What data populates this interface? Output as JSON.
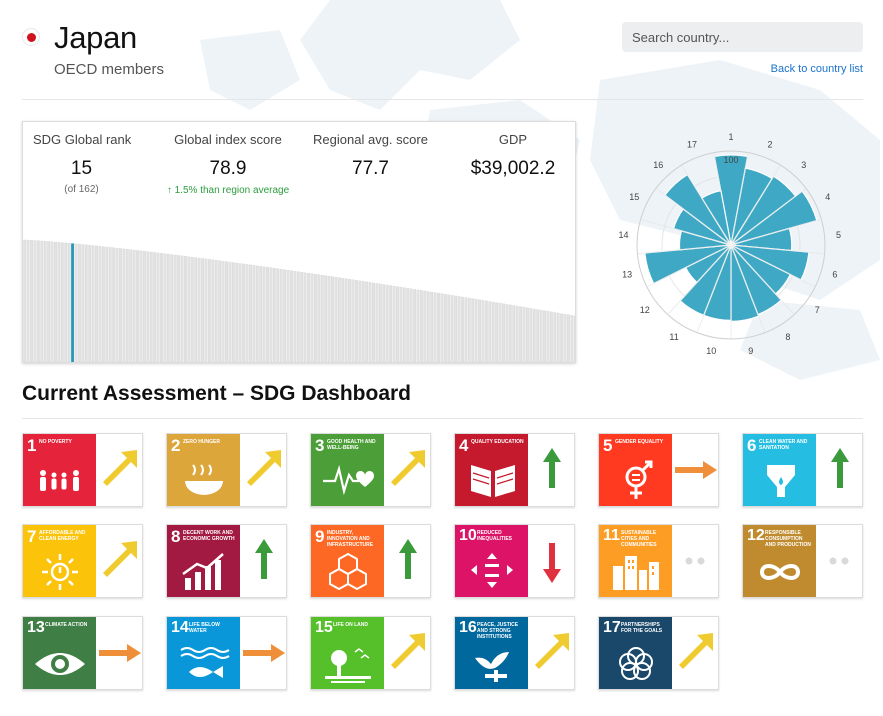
{
  "header": {
    "country": "Japan",
    "group": "OECD members",
    "search_placeholder": "Search country...",
    "back_link": "Back to country list"
  },
  "stats": {
    "rank": {
      "label": "SDG Global rank",
      "value": "15",
      "sub": "(of 162)"
    },
    "index": {
      "label": "Global index score",
      "value": "78.9",
      "delta": "↑ 1.5% than region average"
    },
    "regional": {
      "label": "Regional avg. score",
      "value": "77.7"
    },
    "gdp": {
      "label": "GDP",
      "value": "$39,002.2"
    }
  },
  "rank_chart": {
    "total": 162,
    "highlight_rank": 15,
    "highlight_color": "#2a97b5",
    "bar_color": "#e2e2e2",
    "top_score": 86,
    "bottom_score": 39
  },
  "radar": {
    "goals": [
      "1",
      "2",
      "3",
      "4",
      "5",
      "6",
      "7",
      "8",
      "9",
      "10",
      "11",
      "12",
      "13",
      "14",
      "15",
      "16",
      "17"
    ],
    "scores": [
      98,
      85,
      88,
      97,
      66,
      85,
      72,
      81,
      83,
      82,
      82,
      55,
      94,
      56,
      65,
      90,
      60
    ],
    "max_label": "100",
    "color": "#3fa9c5"
  },
  "dashboard": {
    "title": "Current Assessment – SDG Dashboard",
    "goals": [
      {
        "num": "1",
        "name": "No poverty",
        "color": "#e5243b",
        "icon": "family-icon",
        "trend": "up-right",
        "trend_color": "#f0cb30"
      },
      {
        "num": "2",
        "name": "Zero hunger",
        "color": "#dda63a",
        "icon": "bowl-icon",
        "trend": "up-right",
        "trend_color": "#f0cb30"
      },
      {
        "num": "3",
        "name": "Good health and well-being",
        "color": "#4c9f38",
        "icon": "heartbeat-icon",
        "trend": "up-right",
        "trend_color": "#f0cb30"
      },
      {
        "num": "4",
        "name": "Quality education",
        "color": "#c5192d",
        "icon": "book-icon",
        "trend": "up",
        "trend_color": "#3a9a3c"
      },
      {
        "num": "5",
        "name": "Gender equality",
        "color": "#ff3a21",
        "icon": "gender-icon",
        "trend": "right",
        "trend_color": "#f08f3a"
      },
      {
        "num": "6",
        "name": "Clean water and sanitation",
        "color": "#26bde2",
        "icon": "water-icon",
        "trend": "up",
        "trend_color": "#3a9a3c"
      },
      {
        "num": "7",
        "name": "Affordable and clean energy",
        "color": "#fcc30b",
        "icon": "sun-icon",
        "trend": "up-right",
        "trend_color": "#f0cb30"
      },
      {
        "num": "8",
        "name": "Decent work and economic growth",
        "color": "#a21942",
        "icon": "growth-icon",
        "trend": "up",
        "trend_color": "#3a9a3c"
      },
      {
        "num": "9",
        "name": "Industry, innovation and infrastructure",
        "color": "#fd6925",
        "icon": "cubes-icon",
        "trend": "up",
        "trend_color": "#3a9a3c"
      },
      {
        "num": "10",
        "name": "Reduced inequalities",
        "color": "#dd1367",
        "icon": "equality-icon",
        "trend": "down",
        "trend_color": "#e0323e"
      },
      {
        "num": "11",
        "name": "Sustainable cities and communities",
        "color": "#fd9d24",
        "icon": "city-icon",
        "trend": "none",
        "trend_color": "#d9d9d9"
      },
      {
        "num": "12",
        "name": "Responsible consumption and production",
        "color": "#bf8b2e",
        "icon": "infinity-icon",
        "trend": "none",
        "trend_color": "#d9d9d9"
      },
      {
        "num": "13",
        "name": "Climate action",
        "color": "#3f7e44",
        "icon": "eye-icon",
        "trend": "right",
        "trend_color": "#f08f3a"
      },
      {
        "num": "14",
        "name": "Life below water",
        "color": "#0a97d9",
        "icon": "fish-icon",
        "trend": "right",
        "trend_color": "#f08f3a"
      },
      {
        "num": "15",
        "name": "Life on land",
        "color": "#56c02b",
        "icon": "tree-icon",
        "trend": "up-right",
        "trend_color": "#f0cb30"
      },
      {
        "num": "16",
        "name": "Peace, justice and strong institutions",
        "color": "#00689d",
        "icon": "dove-icon",
        "trend": "up-right",
        "trend_color": "#f0cb30"
      },
      {
        "num": "17",
        "name": "Partnerships for the goals",
        "color": "#19486a",
        "icon": "rings-icon",
        "trend": "up-right",
        "trend_color": "#f0cb30"
      }
    ]
  }
}
